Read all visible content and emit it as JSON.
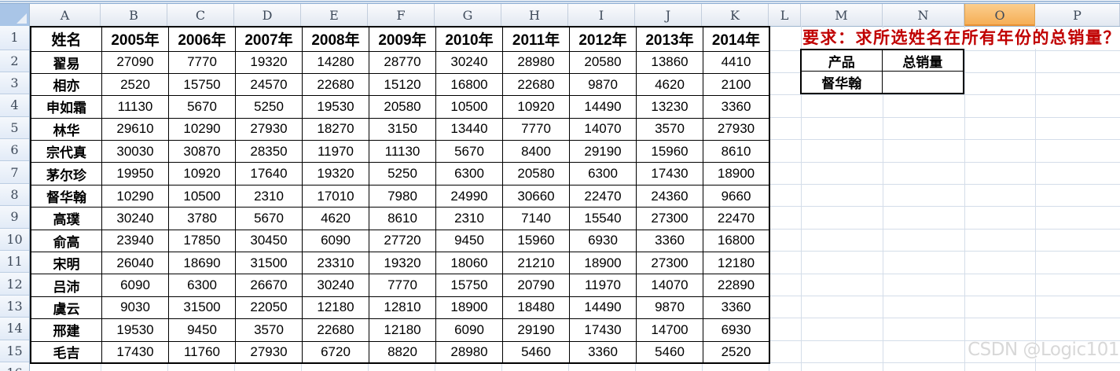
{
  "sheet": {
    "column_letters": [
      "A",
      "B",
      "C",
      "D",
      "E",
      "F",
      "G",
      "H",
      "I",
      "J",
      "K",
      "L",
      "M",
      "N",
      "O",
      "P"
    ],
    "selected_column": "O",
    "row_numbers": [
      "1",
      "2",
      "3",
      "4",
      "5",
      "6",
      "7",
      "8",
      "9",
      "10",
      "11",
      "12",
      "13",
      "14",
      "15",
      "16"
    ],
    "table": {
      "header": [
        "姓名",
        "2005年",
        "2006年",
        "2007年",
        "2008年",
        "2009年",
        "2010年",
        "2011年",
        "2012年",
        "2013年",
        "2014年"
      ],
      "rows": [
        {
          "name": "翟易",
          "values": [
            "27090",
            "7770",
            "19320",
            "14280",
            "28770",
            "30240",
            "28980",
            "20580",
            "13860",
            "4410"
          ]
        },
        {
          "name": "相亦",
          "values": [
            "2520",
            "15750",
            "24570",
            "22680",
            "15120",
            "16800",
            "22680",
            "9870",
            "4620",
            "2100"
          ]
        },
        {
          "name": "申如霜",
          "values": [
            "11130",
            "5670",
            "5250",
            "19530",
            "20580",
            "10500",
            "10920",
            "14490",
            "13230",
            "3360"
          ]
        },
        {
          "name": "林华",
          "values": [
            "29610",
            "10290",
            "27930",
            "18270",
            "3150",
            "13440",
            "7770",
            "14070",
            "3570",
            "27930"
          ]
        },
        {
          "name": "宗代真",
          "values": [
            "30030",
            "30870",
            "28350",
            "11970",
            "11130",
            "5670",
            "8400",
            "29190",
            "15960",
            "8610"
          ]
        },
        {
          "name": "茅尔珍",
          "values": [
            "19950",
            "10920",
            "17640",
            "19320",
            "5250",
            "6300",
            "20580",
            "6300",
            "17430",
            "18900"
          ]
        },
        {
          "name": "督华翰",
          "values": [
            "10290",
            "10500",
            "2310",
            "17010",
            "7980",
            "24990",
            "30660",
            "22470",
            "24360",
            "9660"
          ]
        },
        {
          "name": "高璞",
          "values": [
            "30240",
            "3780",
            "5670",
            "4620",
            "8610",
            "2310",
            "7140",
            "15540",
            "27300",
            "22470"
          ]
        },
        {
          "name": "俞高",
          "values": [
            "23940",
            "17850",
            "30450",
            "6090",
            "27720",
            "9450",
            "15960",
            "6930",
            "3360",
            "16800"
          ]
        },
        {
          "name": "宋明",
          "values": [
            "26040",
            "18690",
            "31500",
            "23310",
            "19320",
            "18060",
            "21210",
            "18900",
            "27300",
            "12180"
          ]
        },
        {
          "name": "吕沛",
          "values": [
            "6090",
            "6300",
            "26670",
            "30240",
            "7770",
            "15750",
            "20790",
            "11970",
            "14070",
            "22890"
          ]
        },
        {
          "name": "虞云",
          "values": [
            "9030",
            "31500",
            "22050",
            "12180",
            "12810",
            "18900",
            "18480",
            "14490",
            "9870",
            "3360"
          ]
        },
        {
          "name": "邢建",
          "values": [
            "19530",
            "9450",
            "3570",
            "22680",
            "12180",
            "6090",
            "29190",
            "17430",
            "14700",
            "6930"
          ]
        },
        {
          "name": "毛吉",
          "values": [
            "17430",
            "11760",
            "27930",
            "6720",
            "8820",
            "28980",
            "5460",
            "3360",
            "5460",
            "2520"
          ]
        }
      ]
    },
    "instruction": "要求：求所选姓名在所有年份的总销量？",
    "lookup": {
      "headers": [
        "产品",
        "总销量"
      ],
      "rows": [
        [
          "督华翰",
          ""
        ]
      ]
    },
    "watermark": "CSDN @Logic101",
    "colors": {
      "selected_header": "#F5AC52",
      "instruction_red": "#C00000",
      "grid_line": "#D4DDE9",
      "table_border": "#000000",
      "header_text": "#3E4A5A",
      "watermark_gray": "#D8D8D8"
    }
  }
}
